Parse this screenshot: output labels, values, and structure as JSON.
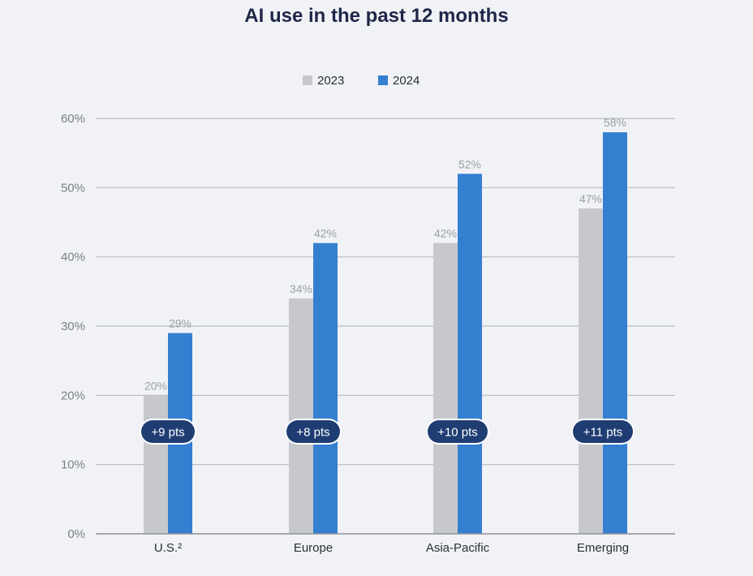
{
  "chart_data": {
    "type": "bar",
    "title": "AI use in the past 12 months",
    "categories": [
      "U.S.²",
      "Europe",
      "Asia-Pacific",
      "Emerging"
    ],
    "series": [
      {
        "name": "2023",
        "values": [
          20,
          34,
          42,
          47
        ],
        "labels": [
          "20%",
          "34%",
          "42%",
          "47%"
        ],
        "color": "#c6c8cc"
      },
      {
        "name": "2024",
        "values": [
          29,
          42,
          52,
          58
        ],
        "labels": [
          "29%",
          "42%",
          "52%",
          "58%"
        ],
        "color": "#357fd1"
      }
    ],
    "annotations": [
      "+9 pts",
      "+8 pts",
      "+10 pts",
      "+11 pts"
    ],
    "annotation_color": "#1f3d73",
    "ylim": [
      0,
      60
    ],
    "yticks": [
      0,
      10,
      20,
      30,
      40,
      50,
      60
    ],
    "ytick_labels": [
      "0%",
      "10%",
      "20%",
      "30%",
      "40%",
      "50%",
      "60%"
    ],
    "xlabel": "",
    "ylabel": "",
    "grid": true,
    "legend_position": "top-center",
    "gridline_color": "#b8bbc0"
  }
}
